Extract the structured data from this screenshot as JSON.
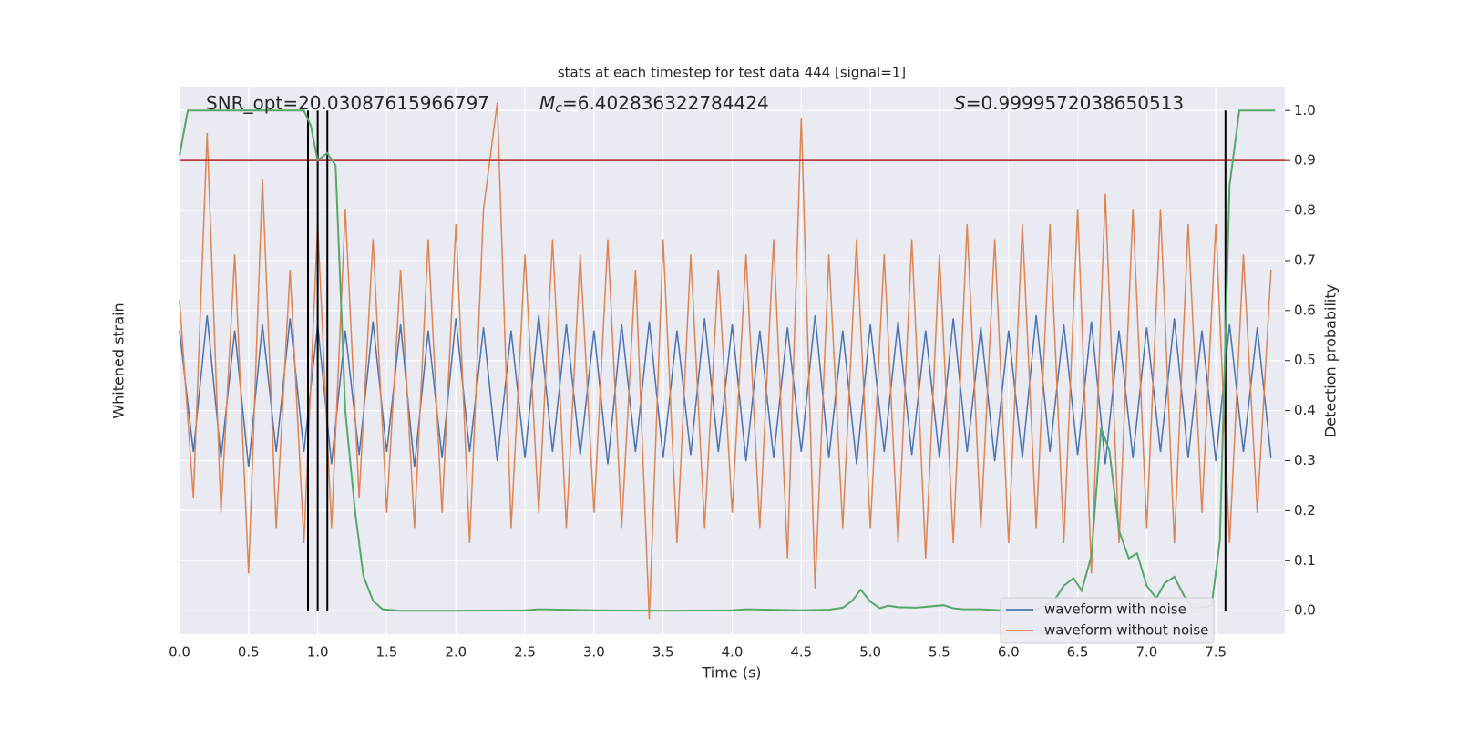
{
  "chart_data": {
    "type": "line",
    "title": "stats at each timestep for test data 444 [signal=1]",
    "xlabel": "Time (s)",
    "ylabel": "Whitened strain",
    "y2label": "Detection probability",
    "annotations": [
      {
        "text": "SNR_opt=20.03087615966797"
      },
      {
        "symbol": "M",
        "subscript": "c",
        "text": "=6.402836322784424"
      },
      {
        "symbol": "S",
        "text": "=0.9999572038650513"
      }
    ],
    "xlim": [
      0,
      8
    ],
    "xticks": [
      {
        "value": 0,
        "label": "0.0"
      },
      0.5,
      {
        "value": 1,
        "label": "1.0"
      },
      1.5,
      {
        "value": 2,
        "label": "2.0"
      },
      2.5,
      {
        "value": 3,
        "label": "3.0"
      },
      3.5,
      {
        "value": 4,
        "label": "4.0"
      },
      4.5,
      {
        "value": 5,
        "label": "5.0"
      },
      5.5,
      {
        "value": 6,
        "label": "6.0"
      },
      6.5,
      {
        "value": 7,
        "label": "7.0"
      },
      7.5
    ],
    "ylim": [
      -0.8,
      1.0
    ],
    "y2lim": [
      -0.047,
      1.046
    ],
    "y2ticks": [
      {
        "value": 0,
        "label": "0.0"
      },
      0.1,
      0.2,
      0.3,
      0.4,
      0.5,
      0.6,
      0.7,
      0.8,
      0.9,
      {
        "value": 1,
        "label": "1.0"
      }
    ],
    "grid": true,
    "legend": "lower right",
    "x": [
      0,
      0.1,
      0.2,
      0.3,
      0.4,
      0.5,
      0.6,
      0.7,
      0.8,
      0.9,
      1.0,
      1.1,
      1.2,
      1.3,
      1.4,
      1.5,
      1.6,
      1.7,
      1.8,
      1.9,
      2.0,
      2.1,
      2.2,
      2.3,
      2.4,
      2.5,
      2.6,
      2.7,
      2.8,
      2.9,
      3.0,
      3.1,
      3.2,
      3.3,
      3.4,
      3.5,
      3.6,
      3.7,
      3.8,
      3.9,
      4.0,
      4.1,
      4.2,
      4.3,
      4.4,
      4.5,
      4.6,
      4.7,
      4.8,
      4.9,
      5.0,
      5.1,
      5.2,
      5.3,
      5.4,
      5.5,
      5.6,
      5.7,
      5.8,
      5.9,
      6.0,
      6.1,
      6.2,
      6.3,
      6.4,
      6.5,
      6.6,
      6.7,
      6.8,
      6.9,
      7.0,
      7.1,
      7.2,
      7.3,
      7.4,
      7.5,
      7.6,
      7.7,
      7.8,
      7.9
    ],
    "series": [
      {
        "name": "waveform with noise",
        "color": "#4c72b0",
        "values": [
          0.2,
          -0.2,
          0.25,
          -0.22,
          0.2,
          -0.25,
          0.22,
          -0.2,
          0.24,
          -0.2,
          0.22,
          -0.24,
          0.2,
          -0.21,
          0.23,
          -0.2,
          0.22,
          -0.25,
          0.2,
          -0.22,
          0.24,
          -0.2,
          0.21,
          -0.23,
          0.2,
          -0.22,
          0.25,
          -0.2,
          0.22,
          -0.21,
          0.2,
          -0.24,
          0.22,
          -0.2,
          0.23,
          -0.22,
          0.2,
          -0.21,
          0.24,
          -0.2,
          0.22,
          -0.23,
          0.2,
          -0.22,
          0.21,
          -0.2,
          0.25,
          -0.22,
          0.2,
          -0.24,
          0.22,
          -0.2,
          0.23,
          -0.21,
          0.2,
          -0.22,
          0.24,
          -0.2,
          0.21,
          -0.23,
          0.2,
          -0.22,
          0.25,
          -0.2,
          0.22,
          -0.21,
          0.23,
          -0.24,
          0.2,
          -0.22,
          0.21,
          -0.2,
          0.24,
          -0.22,
          0.2,
          -0.23,
          0.22,
          -0.2,
          0.21,
          -0.22
        ]
      },
      {
        "name": "waveform without noise",
        "color": "#dd8452",
        "values": [
          0.3,
          -0.35,
          0.85,
          -0.4,
          0.45,
          -0.6,
          0.7,
          -0.45,
          0.4,
          -0.5,
          0.55,
          -0.45,
          0.6,
          -0.35,
          0.5,
          -0.4,
          0.4,
          -0.45,
          0.5,
          -0.4,
          0.55,
          -0.5,
          0.6,
          0.95,
          -0.45,
          0.45,
          -0.4,
          0.5,
          -0.45,
          0.45,
          -0.4,
          0.5,
          -0.45,
          0.4,
          -0.75,
          0.5,
          -0.5,
          0.45,
          -0.45,
          0.4,
          -0.4,
          0.45,
          -0.45,
          0.5,
          -0.55,
          0.9,
          -0.65,
          0.45,
          -0.45,
          0.5,
          -0.45,
          0.45,
          -0.5,
          0.5,
          -0.55,
          0.45,
          -0.5,
          0.55,
          -0.45,
          0.5,
          -0.5,
          0.55,
          -0.45,
          0.55,
          -0.5,
          0.6,
          -0.6,
          0.65,
          -0.5,
          0.6,
          -0.45,
          0.6,
          -0.5,
          0.55,
          -0.4,
          0.55,
          -0.5,
          0.45,
          -0.4,
          0.4
        ]
      }
    ],
    "probability": {
      "axis": "y2",
      "color": "#55a868",
      "x": [
        0,
        0.06,
        0.9,
        0.95,
        1.0,
        1.07,
        1.13,
        1.2,
        1.27,
        1.33,
        1.4,
        1.47,
        1.6,
        2.0,
        2.5,
        2.6,
        3.0,
        3.5,
        4.0,
        4.1,
        4.5,
        4.7,
        4.8,
        4.87,
        4.93,
        5.0,
        5.07,
        5.13,
        5.2,
        5.33,
        5.53,
        5.6,
        5.67,
        5.8,
        6.0,
        6.2,
        6.33,
        6.4,
        6.47,
        6.53,
        6.6,
        6.67,
        6.73,
        6.8,
        6.87,
        6.93,
        7.0,
        7.07,
        7.13,
        7.2,
        7.27,
        7.33,
        7.4,
        7.47,
        7.53,
        7.6,
        7.67,
        7.8,
        7.93
      ],
      "values": [
        0.91,
        1.0,
        1.0,
        0.97,
        0.9,
        0.915,
        0.89,
        0.4,
        0.2,
        0.07,
        0.02,
        0.003,
        0.0,
        0.0,
        0.001,
        0.003,
        0.001,
        0.0,
        0.001,
        0.003,
        0.001,
        0.002,
        0.006,
        0.02,
        0.042,
        0.018,
        0.005,
        0.01,
        0.007,
        0.006,
        0.011,
        0.005,
        0.003,
        0.003,
        0.0,
        0.002,
        0.02,
        0.05,
        0.065,
        0.04,
        0.11,
        0.365,
        0.32,
        0.16,
        0.105,
        0.115,
        0.05,
        0.025,
        0.055,
        0.068,
        0.03,
        0.005,
        0.007,
        0.01,
        0.14,
        0.85,
        1.0,
        1.0,
        1.0
      ]
    },
    "threshold": {
      "value": 0.9,
      "color": "#b22222"
    },
    "vlines": {
      "color": "#000000",
      "x": [
        0.93,
        1.0,
        1.07,
        7.57
      ]
    }
  }
}
